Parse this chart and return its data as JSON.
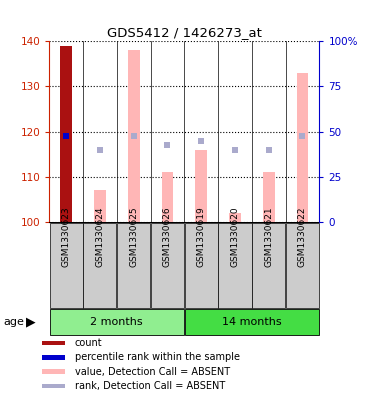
{
  "title": "GDS5412 / 1426273_at",
  "samples": [
    "GSM1330623",
    "GSM1330624",
    "GSM1330625",
    "GSM1330626",
    "GSM1330619",
    "GSM1330620",
    "GSM1330621",
    "GSM1330622"
  ],
  "groups": [
    {
      "label": "2 months",
      "indices": [
        0,
        1,
        2,
        3
      ],
      "color": "#90EE90"
    },
    {
      "label": "14 months",
      "indices": [
        4,
        5,
        6,
        7
      ],
      "color": "#44DD44"
    }
  ],
  "ylim_left": [
    100,
    140
  ],
  "ylim_right": [
    0,
    100
  ],
  "yticks_left": [
    100,
    110,
    120,
    130,
    140
  ],
  "ytick_labels_right": [
    "0",
    "25",
    "50",
    "75",
    "100%"
  ],
  "yticks_right": [
    0,
    25,
    50,
    75,
    100
  ],
  "bar_values": [
    139,
    107,
    138,
    111,
    116,
    102,
    111,
    133
  ],
  "rank_dots": [
    119,
    116,
    119,
    117,
    118,
    116,
    116,
    119
  ],
  "count_bar_color": "#AA1111",
  "count_rank_color": "#0000CC",
  "bar_color_absent": "#FFB6B6",
  "rank_color_absent": "#AAAACC",
  "bar_width": 0.35,
  "grid_color": "#000000",
  "left_axis_color": "#CC2200",
  "right_axis_color": "#0000CC",
  "sample_box_color": "#CCCCCC",
  "age_label": "age",
  "legend_items": [
    {
      "color": "#AA1111",
      "label": "count"
    },
    {
      "color": "#0000CC",
      "label": "percentile rank within the sample"
    },
    {
      "color": "#FFB6B6",
      "label": "value, Detection Call = ABSENT"
    },
    {
      "color": "#AAAACC",
      "label": "rank, Detection Call = ABSENT"
    }
  ]
}
